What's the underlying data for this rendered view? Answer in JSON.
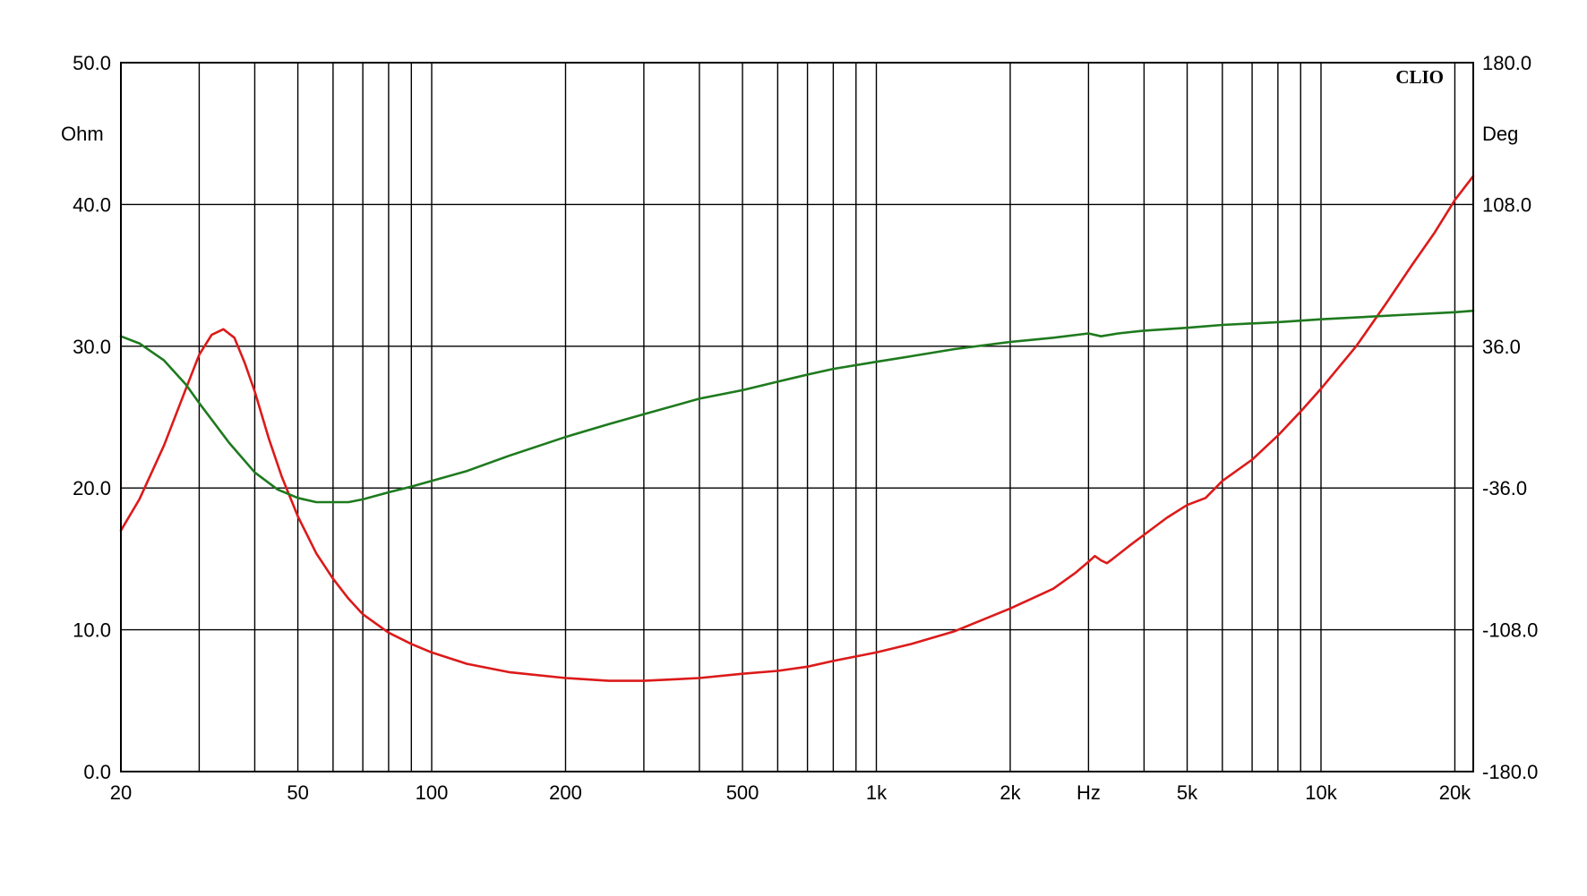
{
  "chart_data": {
    "type": "line",
    "watermark": "CLIO",
    "x_scale": "log",
    "xlim": [
      20,
      22000
    ],
    "x_ticks": [
      {
        "value": 20,
        "label": "20"
      },
      {
        "value": 50,
        "label": "50"
      },
      {
        "value": 100,
        "label": "100"
      },
      {
        "value": 200,
        "label": "200"
      },
      {
        "value": 500,
        "label": "500"
      },
      {
        "value": 1000,
        "label": "1k"
      },
      {
        "value": 2000,
        "label": "2k"
      },
      {
        "value": 3000,
        "label": "Hz"
      },
      {
        "value": 5000,
        "label": "5k"
      },
      {
        "value": 10000,
        "label": "10k"
      },
      {
        "value": 20000,
        "label": "20k"
      }
    ],
    "ylim_left": [
      0,
      50
    ],
    "ylabel_left": "Ohm",
    "y_ticks_left": [
      {
        "value": 0,
        "label": "0.0"
      },
      {
        "value": 10,
        "label": "10.0"
      },
      {
        "value": 20,
        "label": "20.0"
      },
      {
        "value": 30,
        "label": "30.0"
      },
      {
        "value": 40,
        "label": "40.0"
      },
      {
        "value": 50,
        "label": "50.0"
      }
    ],
    "ylim_right": [
      -180,
      180
    ],
    "ylabel_right": "Deg",
    "y_ticks_right": [
      {
        "value": -180,
        "label": "-180.0"
      },
      {
        "value": -108,
        "label": "-108.0"
      },
      {
        "value": -36,
        "label": "-36.0"
      },
      {
        "value": 36,
        "label": "36.0"
      },
      {
        "value": 108,
        "label": "108.0"
      },
      {
        "value": 180,
        "label": "180.0"
      }
    ],
    "grid": true,
    "series": [
      {
        "axis": "left",
        "color": "#dc1a1a",
        "points": [
          [
            20,
            17.0
          ],
          [
            22,
            19.2
          ],
          [
            25,
            23.0
          ],
          [
            28,
            27.0
          ],
          [
            30,
            29.4
          ],
          [
            32,
            30.8
          ],
          [
            34,
            31.2
          ],
          [
            36,
            30.6
          ],
          [
            38,
            28.8
          ],
          [
            40,
            26.8
          ],
          [
            43,
            23.5
          ],
          [
            46,
            20.8
          ],
          [
            50,
            18.0
          ],
          [
            55,
            15.4
          ],
          [
            60,
            13.6
          ],
          [
            65,
            12.2
          ],
          [
            70,
            11.1
          ],
          [
            80,
            9.8
          ],
          [
            90,
            9.0
          ],
          [
            100,
            8.4
          ],
          [
            120,
            7.6
          ],
          [
            150,
            7.0
          ],
          [
            200,
            6.6
          ],
          [
            250,
            6.4
          ],
          [
            300,
            6.4
          ],
          [
            400,
            6.6
          ],
          [
            500,
            6.9
          ],
          [
            600,
            7.1
          ],
          [
            700,
            7.4
          ],
          [
            800,
            7.8
          ],
          [
            1000,
            8.4
          ],
          [
            1200,
            9.0
          ],
          [
            1500,
            9.9
          ],
          [
            2000,
            11.5
          ],
          [
            2500,
            12.9
          ],
          [
            2800,
            14.0
          ],
          [
            3000,
            14.8
          ],
          [
            3100,
            15.2
          ],
          [
            3200,
            14.9
          ],
          [
            3300,
            14.7
          ],
          [
            3400,
            15.0
          ],
          [
            3700,
            15.9
          ],
          [
            4000,
            16.7
          ],
          [
            4500,
            17.9
          ],
          [
            5000,
            18.8
          ],
          [
            5500,
            19.3
          ],
          [
            6000,
            20.5
          ],
          [
            7000,
            22.0
          ],
          [
            8000,
            23.7
          ],
          [
            9000,
            25.4
          ],
          [
            10000,
            27.0
          ],
          [
            12000,
            30.0
          ],
          [
            14000,
            33.0
          ],
          [
            16000,
            35.7
          ],
          [
            18000,
            38.0
          ],
          [
            20000,
            40.3
          ],
          [
            22000,
            42.0
          ]
        ]
      },
      {
        "axis": "left",
        "color": "#1e7a1e",
        "points": [
          [
            20,
            30.7
          ],
          [
            22,
            30.2
          ],
          [
            25,
            29.0
          ],
          [
            28,
            27.3
          ],
          [
            30,
            26.0
          ],
          [
            35,
            23.2
          ],
          [
            40,
            21.1
          ],
          [
            45,
            19.9
          ],
          [
            50,
            19.3
          ],
          [
            55,
            19.0
          ],
          [
            60,
            19.0
          ],
          [
            65,
            19.0
          ],
          [
            70,
            19.2
          ],
          [
            80,
            19.7
          ],
          [
            90,
            20.1
          ],
          [
            100,
            20.5
          ],
          [
            120,
            21.2
          ],
          [
            150,
            22.3
          ],
          [
            200,
            23.6
          ],
          [
            250,
            24.5
          ],
          [
            300,
            25.2
          ],
          [
            400,
            26.3
          ],
          [
            500,
            26.9
          ],
          [
            600,
            27.5
          ],
          [
            700,
            28.0
          ],
          [
            800,
            28.4
          ],
          [
            1000,
            28.9
          ],
          [
            1200,
            29.3
          ],
          [
            1500,
            29.8
          ],
          [
            2000,
            30.3
          ],
          [
            2500,
            30.6
          ],
          [
            3000,
            30.9
          ],
          [
            3200,
            30.7
          ],
          [
            3500,
            30.9
          ],
          [
            4000,
            31.1
          ],
          [
            5000,
            31.3
          ],
          [
            6000,
            31.5
          ],
          [
            8000,
            31.7
          ],
          [
            10000,
            31.9
          ],
          [
            15000,
            32.2
          ],
          [
            20000,
            32.4
          ],
          [
            22000,
            32.5
          ]
        ]
      }
    ]
  }
}
